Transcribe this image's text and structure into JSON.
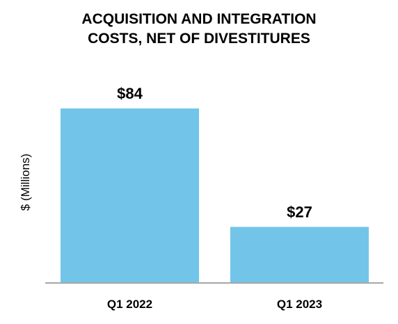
{
  "chart_data": {
    "type": "bar",
    "title_lines": [
      "ACQUISITION AND INTEGRATION",
      "COSTS, NET OF DIVESTITURES"
    ],
    "ylabel": "$ (Millions)",
    "xlabel": "",
    "categories": [
      "Q1 2022",
      "Q1 2023"
    ],
    "values": [
      84,
      27
    ],
    "data_labels": [
      "$84",
      "$27"
    ],
    "ylim": [
      0,
      84
    ],
    "grid": false,
    "legend": "none",
    "bar_color": "#72C5E8",
    "axis_color": "#A6A6A6"
  }
}
